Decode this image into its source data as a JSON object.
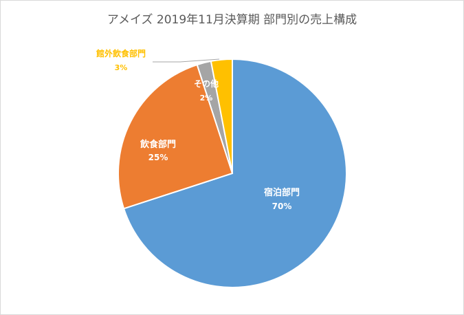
{
  "chart_data": {
    "type": "pie",
    "title": "アメイズ 2019年11月決算期 部門別の売上構成",
    "slices": [
      {
        "label": "宿泊部門",
        "value": 70,
        "value_label": "70%",
        "color": "#5b9bd5",
        "label_color": "#ffffff"
      },
      {
        "label": "飲食部門",
        "value": 25,
        "value_label": "25%",
        "color": "#ed7d31",
        "label_color": "#ffffff"
      },
      {
        "label": "その他",
        "value": 2,
        "value_label": "2%",
        "color": "#a5a5a5",
        "label_color": "#ffffff"
      },
      {
        "label": "館外飲食部門",
        "value": 3,
        "value_label": "3%",
        "color": "#ffc000",
        "label_color": "#ffc000"
      }
    ],
    "legend": "none",
    "start": "12 o'clock, clockwise"
  }
}
